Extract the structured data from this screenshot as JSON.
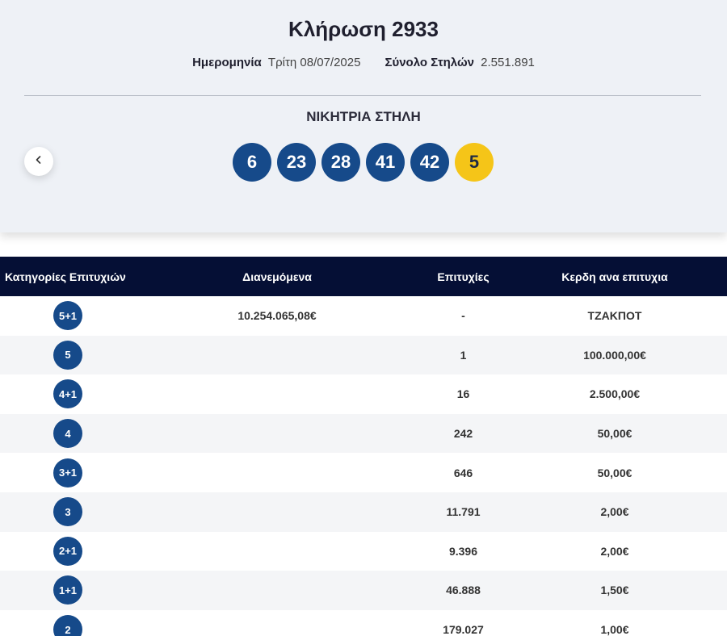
{
  "draw": {
    "title": "Κλήρωση 2933",
    "date_label": "Ημερομηνία",
    "date_value": "Τρίτη 08/07/2025",
    "total_label": "Σύνολο Στηλών",
    "total_value": "2.551.891",
    "winning_label": "ΝΙΚΗΤΡΙΑ ΣΤΗΛΗ",
    "numbers": [
      "6",
      "23",
      "28",
      "41",
      "42"
    ],
    "bonus": "5"
  },
  "colors": {
    "ball": "#164a8a",
    "bonus": "#f5c518",
    "header_bg": "#050f35"
  },
  "icons": {
    "prev": "chevron-left-icon"
  },
  "table": {
    "headers": [
      "Κατηγορίες Επιτυχιών",
      "Διανεμόμενα",
      "Επιτυχίες",
      "Κερδη ανα επιτυχια"
    ],
    "rows": [
      {
        "cat": "5+1",
        "distributed": "10.254.065,08€",
        "winners": "-",
        "prize": "ΤΖΑΚΠΟΤ"
      },
      {
        "cat": "5",
        "distributed": "",
        "winners": "1",
        "prize": "100.000,00€"
      },
      {
        "cat": "4+1",
        "distributed": "",
        "winners": "16",
        "prize": "2.500,00€"
      },
      {
        "cat": "4",
        "distributed": "",
        "winners": "242",
        "prize": "50,00€"
      },
      {
        "cat": "3+1",
        "distributed": "",
        "winners": "646",
        "prize": "50,00€"
      },
      {
        "cat": "3",
        "distributed": "",
        "winners": "11.791",
        "prize": "2,00€"
      },
      {
        "cat": "2+1",
        "distributed": "",
        "winners": "9.396",
        "prize": "2,00€"
      },
      {
        "cat": "1+1",
        "distributed": "",
        "winners": "46.888",
        "prize": "1,50€"
      },
      {
        "cat": "2",
        "distributed": "",
        "winners": "179.027",
        "prize": "1,00€"
      }
    ]
  }
}
